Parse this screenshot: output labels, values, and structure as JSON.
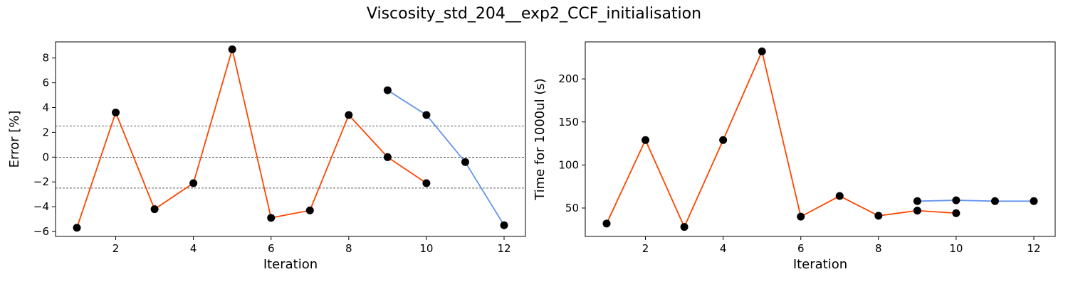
{
  "chart_data": {
    "title": "Viscosity_std_204__exp2_CCF_initialisation",
    "subplots": [
      {
        "type": "line",
        "xlabel": "Iteration",
        "ylabel": "Error [%]",
        "xlim": [
          0.45,
          12.55
        ],
        "ylim": [
          -6.4,
          9.3
        ],
        "xticks": [
          2,
          4,
          6,
          8,
          10,
          12
        ],
        "yticks": [
          -6,
          -4,
          -2,
          0,
          2,
          4,
          6,
          8
        ],
        "reference_lines": [
          2.5,
          0,
          -2.5
        ],
        "series": [
          {
            "color": "#ff4500",
            "x": [
              1,
              2,
              3,
              4,
              5,
              6,
              7,
              8,
              9,
              10
            ],
            "y": [
              -5.7,
              3.6,
              -4.2,
              -2.1,
              8.7,
              -4.9,
              -4.3,
              3.4,
              0.0,
              -2.1
            ]
          },
          {
            "color": "#6495ed",
            "x": [
              9,
              10,
              11,
              12
            ],
            "y": [
              5.4,
              3.4,
              -0.4,
              -5.5
            ]
          }
        ]
      },
      {
        "type": "line",
        "xlabel": "Iteration",
        "ylabel": "Time for 1000ul (s)",
        "xlim": [
          0.45,
          12.55
        ],
        "ylim": [
          17,
          243
        ],
        "xticks": [
          2,
          4,
          6,
          8,
          10,
          12
        ],
        "yticks": [
          50,
          100,
          150,
          200
        ],
        "reference_lines": [],
        "series": [
          {
            "color": "#ff4500",
            "x": [
              1,
              2,
              3,
              4,
              5,
              6,
              7,
              8,
              9,
              10
            ],
            "y": [
              32,
              129,
              28,
              129,
              232,
              40,
              64,
              41,
              47,
              44
            ]
          },
          {
            "color": "#6495ed",
            "x": [
              9,
              10,
              11,
              12
            ],
            "y": [
              58,
              59,
              58,
              58
            ]
          }
        ]
      }
    ]
  }
}
